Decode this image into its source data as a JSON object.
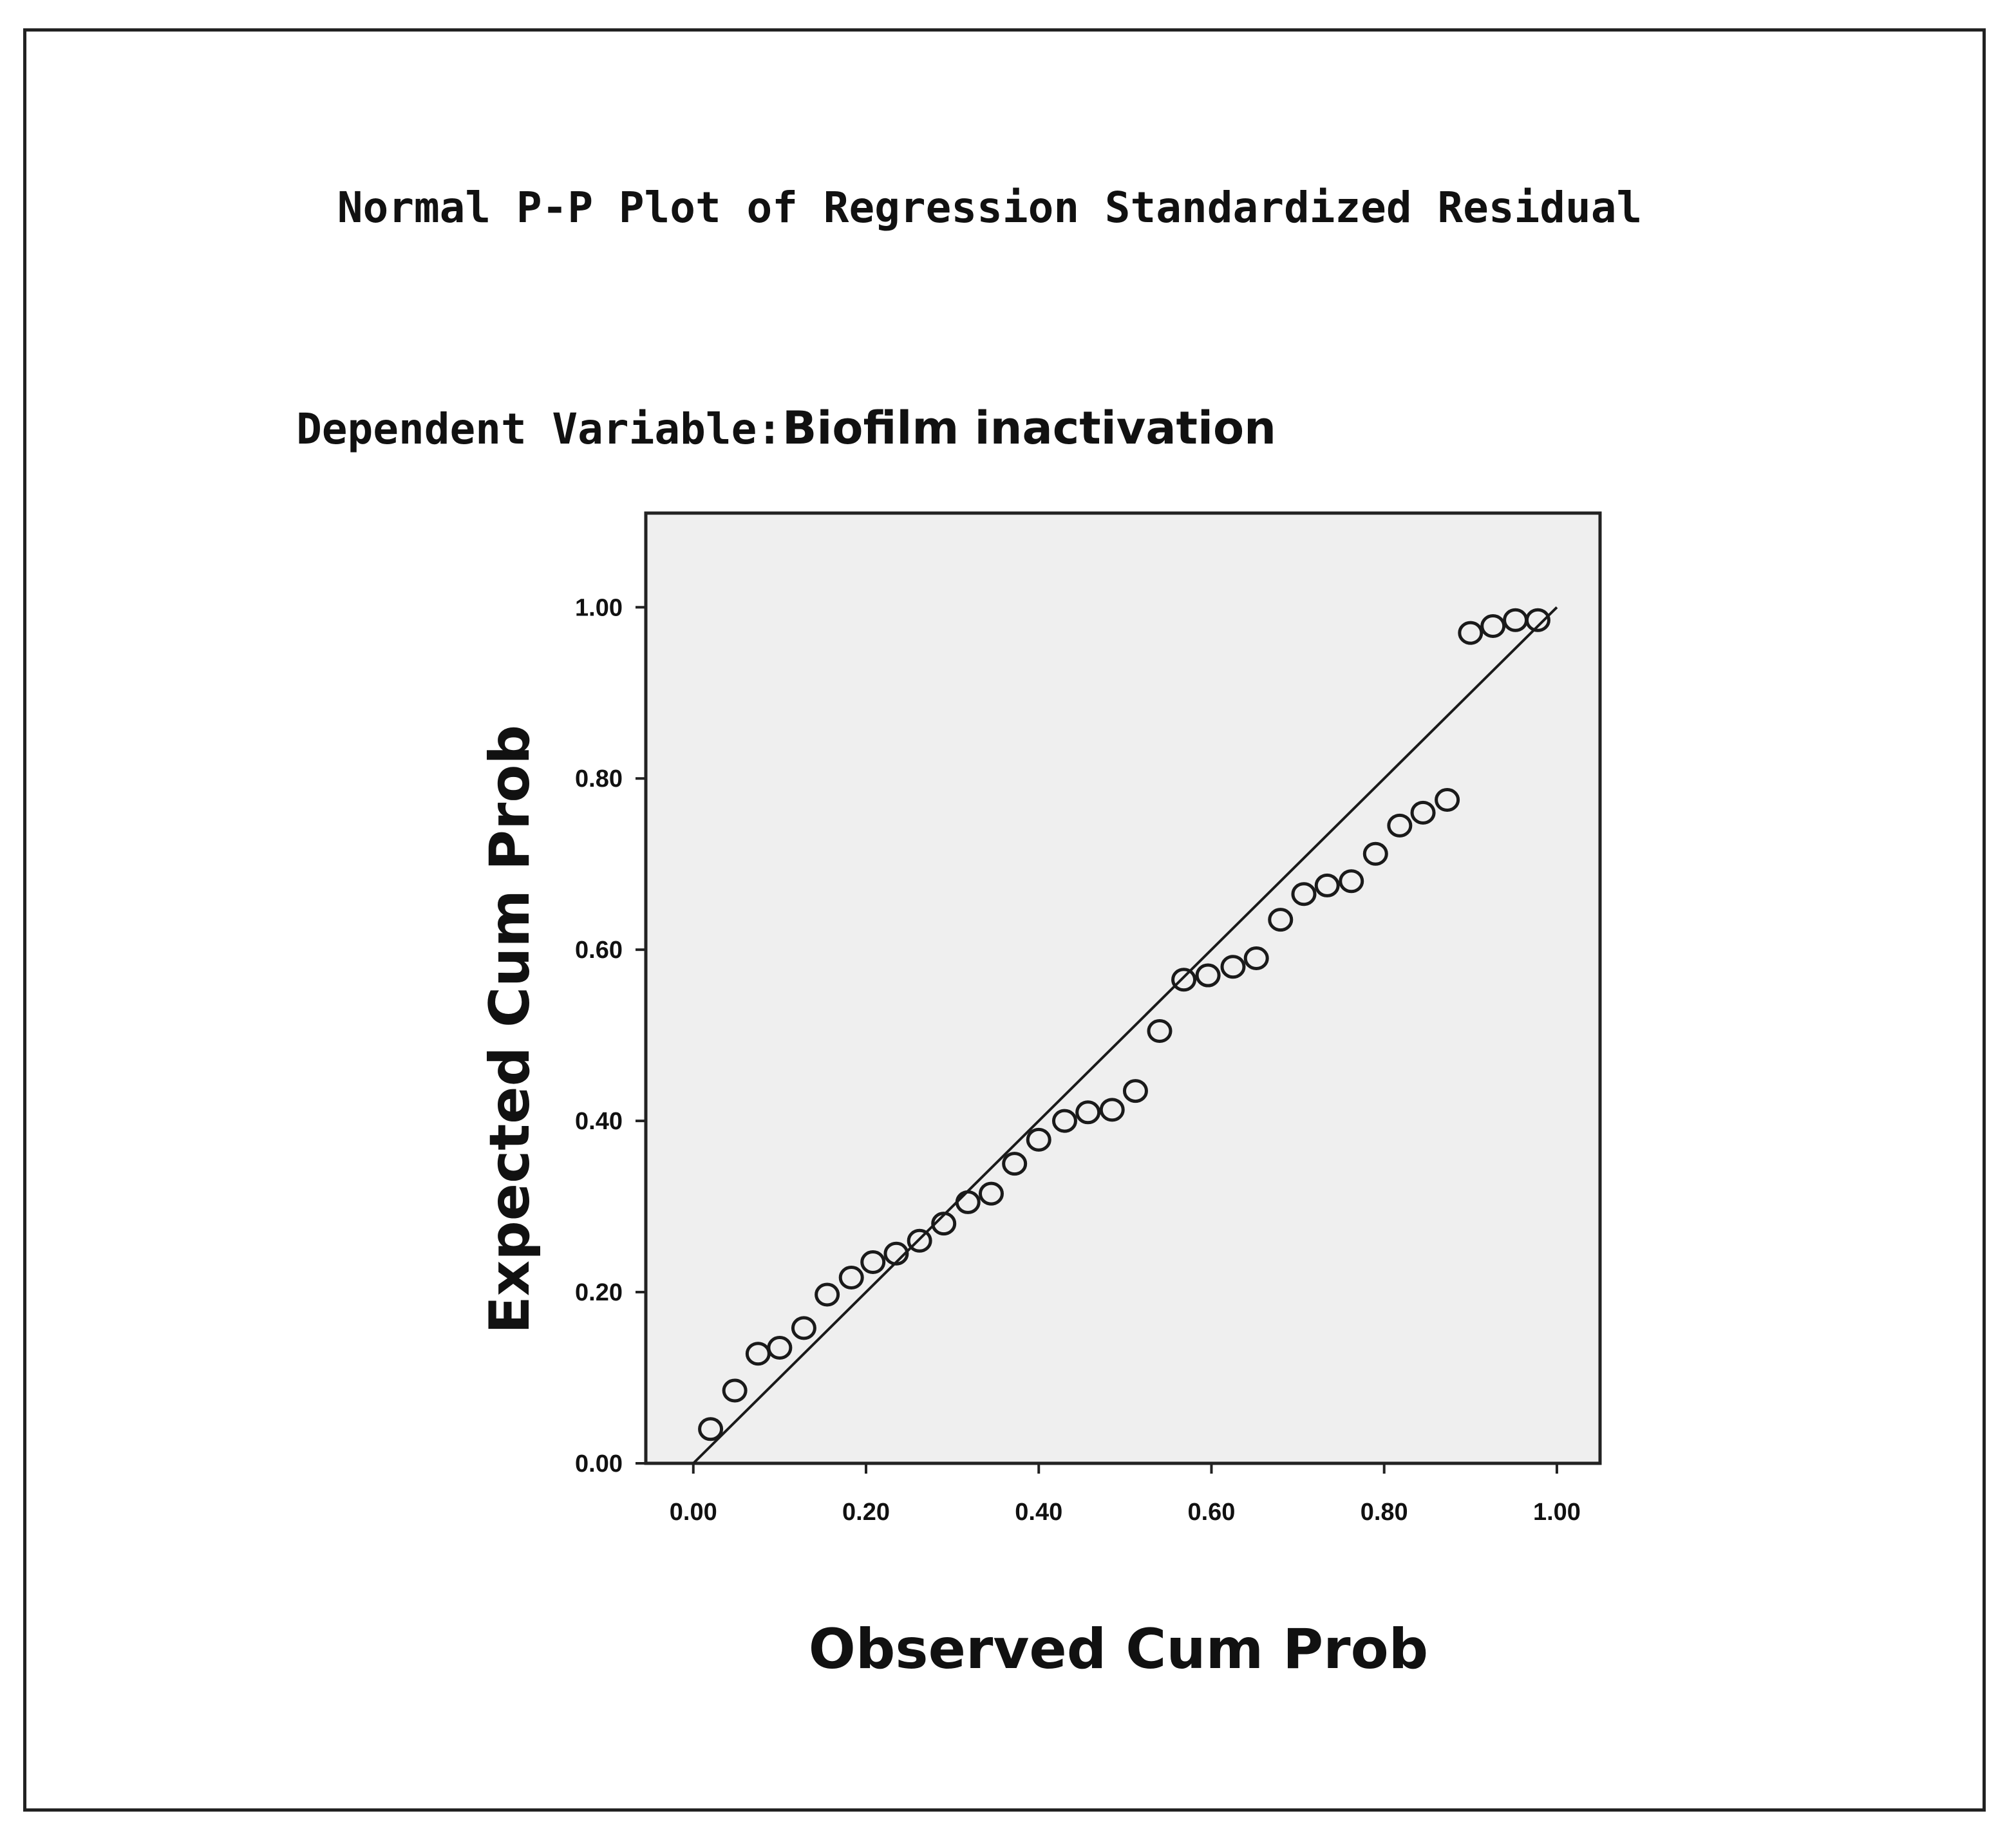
{
  "chart_data": {
    "type": "scatter",
    "title": "Normal P-P Plot of Regression Standardized Residual",
    "subtitle_prefix": "Dependent Variable:",
    "subtitle_value": "Biofilm inactivation",
    "xlabel": "Observed Cum Prob",
    "ylabel": "Expected Cum Prob",
    "xlim": [
      -0.055,
      1.05
    ],
    "ylim": [
      0.0,
      1.11
    ],
    "x_ticks": [
      "0.00",
      "0.20",
      "0.40",
      "0.60",
      "0.80",
      "1.00"
    ],
    "y_ticks": [
      "0.00",
      "0.20",
      "0.40",
      "0.60",
      "0.80",
      "1.00"
    ],
    "reference_line": [
      [
        0.0,
        0.0
      ],
      [
        1.0,
        1.0
      ]
    ],
    "plot_background": "#efefef",
    "grid": false,
    "points": [
      [
        0.02,
        0.04
      ],
      [
        0.048,
        0.085
      ],
      [
        0.075,
        0.128
      ],
      [
        0.1,
        0.135
      ],
      [
        0.128,
        0.158
      ],
      [
        0.155,
        0.197
      ],
      [
        0.183,
        0.217
      ],
      [
        0.208,
        0.235
      ],
      [
        0.235,
        0.245
      ],
      [
        0.262,
        0.26
      ],
      [
        0.29,
        0.28
      ],
      [
        0.318,
        0.305
      ],
      [
        0.345,
        0.315
      ],
      [
        0.372,
        0.35
      ],
      [
        0.4,
        0.378
      ],
      [
        0.43,
        0.4
      ],
      [
        0.457,
        0.41
      ],
      [
        0.485,
        0.413
      ],
      [
        0.512,
        0.435
      ],
      [
        0.54,
        0.505
      ],
      [
        0.568,
        0.565
      ],
      [
        0.596,
        0.57
      ],
      [
        0.625,
        0.58
      ],
      [
        0.652,
        0.59
      ],
      [
        0.68,
        0.635
      ],
      [
        0.707,
        0.665
      ],
      [
        0.734,
        0.675
      ],
      [
        0.762,
        0.68
      ],
      [
        0.79,
        0.712
      ],
      [
        0.818,
        0.745
      ],
      [
        0.845,
        0.76
      ],
      [
        0.873,
        0.775
      ],
      [
        0.9,
        0.97
      ],
      [
        0.926,
        0.978
      ],
      [
        0.952,
        0.985
      ],
      [
        0.978,
        0.985
      ]
    ]
  }
}
